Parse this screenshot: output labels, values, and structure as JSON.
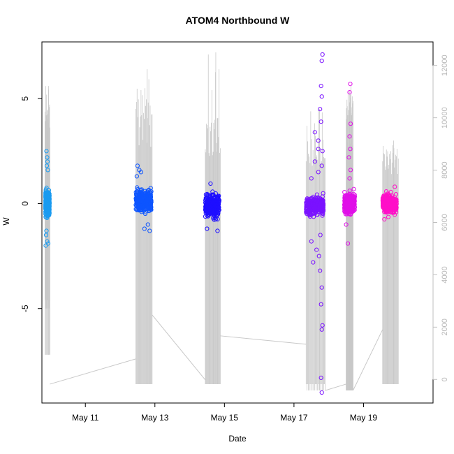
{
  "chart_data": {
    "type": "scatter",
    "title": "ATOM4 Northbound W",
    "xlabel": "Date",
    "ylabel": "W",
    "x_ticks": [
      "May 11",
      "May 13",
      "May 15",
      "May 17",
      "May 19"
    ],
    "x_tick_dates": [
      11,
      13,
      15,
      17,
      19
    ],
    "xlim_dates": [
      9.75,
      21.0
    ],
    "ylim": [
      -9.5,
      7.7
    ],
    "y_ticks": [
      -5,
      0,
      5
    ],
    "right_axis": {
      "ticks": [
        0,
        2000,
        4000,
        6000,
        8000,
        10000,
        12000
      ],
      "lim": [
        -900,
        12900
      ],
      "color": "#bfbfbf"
    },
    "gray_line_color": "#c8c8c8",
    "series": [
      {
        "color": "#1a9bf0",
        "date_range": [
          9.85,
          9.97
        ],
        "core": [
          -0.9,
          0.9
        ],
        "outliers": [
          [
            9.88,
            2.5
          ],
          [
            9.9,
            2.2
          ],
          [
            9.91,
            2.0
          ],
          [
            9.89,
            1.8
          ],
          [
            9.92,
            1.6
          ],
          [
            9.87,
            -1.5
          ],
          [
            9.9,
            -1.8
          ],
          [
            9.86,
            -2.0
          ],
          [
            9.88,
            -1.3
          ],
          [
            9.93,
            -1.9
          ]
        ],
        "gray": {
          "range": [
            9.84,
            9.98
          ],
          "tops": [
            4.3,
            5.3,
            3.8,
            5.6,
            4.0
          ],
          "bottoms": [
            -4.6,
            -7.2,
            -5.0,
            -2.0
          ]
        }
      },
      {
        "color": "#0d55ff",
        "date_range": [
          12.45,
          12.9
        ],
        "core": [
          -0.8,
          1.0
        ],
        "outliers": [
          [
            12.5,
            1.8
          ],
          [
            12.55,
            1.6
          ],
          [
            12.6,
            1.5
          ],
          [
            12.7,
            -1.2
          ],
          [
            12.8,
            -1.0
          ],
          [
            12.48,
            1.3
          ],
          [
            12.85,
            -1.3
          ]
        ],
        "gray": {
          "range": [
            12.45,
            12.92
          ],
          "tops": [
            4.6,
            5.0,
            6.4,
            4.8,
            5.2,
            3.5
          ],
          "bottoms": [
            -8.6
          ]
        }
      },
      {
        "color": "#1e0fff",
        "date_range": [
          14.45,
          14.85
        ],
        "core": [
          -1.0,
          0.8
        ],
        "outliers": [
          [
            14.5,
            -1.2
          ],
          [
            14.6,
            0.95
          ],
          [
            14.8,
            -1.3
          ]
        ],
        "gray": {
          "range": [
            14.45,
            14.88
          ],
          "tops": [
            2.8,
            3.0,
            4.5,
            4.4,
            4.2,
            7.2
          ],
          "bottoms": [
            -8.6
          ]
        }
      },
      {
        "color": "#7a12ff",
        "date_range": [
          17.35,
          17.85
        ],
        "core": [
          -0.8,
          0.6
        ],
        "outliers": [
          [
            17.82,
            7.1
          ],
          [
            17.8,
            6.8
          ],
          [
            17.78,
            5.6
          ],
          [
            17.8,
            5.1
          ],
          [
            17.75,
            4.5
          ],
          [
            17.78,
            3.9
          ],
          [
            17.6,
            3.4
          ],
          [
            17.7,
            3.0
          ],
          [
            17.82,
            2.5
          ],
          [
            17.5,
            -1.8
          ],
          [
            17.55,
            -2.8
          ],
          [
            17.75,
            -3.2
          ],
          [
            17.8,
            -4.0
          ],
          [
            17.78,
            -4.8
          ],
          [
            17.82,
            -5.8
          ],
          [
            17.8,
            -6.0
          ],
          [
            17.78,
            -8.3
          ],
          [
            17.8,
            -9.0
          ],
          [
            17.6,
            2.0
          ],
          [
            17.7,
            1.5
          ],
          [
            17.65,
            -2.2
          ],
          [
            17.72,
            -2.5
          ],
          [
            17.5,
            1.2
          ],
          [
            17.8,
            1.8
          ],
          [
            17.76,
            -1.5
          ],
          [
            17.7,
            2.6
          ]
        ],
        "gray": {
          "range": [
            17.35,
            17.9
          ],
          "tops": [
            2.2,
            4.5,
            3.4,
            2.4,
            2.8
          ],
          "bottoms": [
            -8.6,
            -8.9
          ]
        }
      },
      {
        "color": "#e010e8",
        "date_range": [
          18.45,
          18.75
        ],
        "core": [
          -0.8,
          0.8
        ],
        "outliers": [
          [
            18.62,
            5.7
          ],
          [
            18.6,
            5.3
          ],
          [
            18.63,
            3.8
          ],
          [
            18.6,
            3.2
          ],
          [
            18.62,
            2.6
          ],
          [
            18.58,
            2.2
          ],
          [
            18.63,
            1.6
          ],
          [
            18.55,
            -1.9
          ],
          [
            18.5,
            -1.0
          ],
          [
            18.6,
            1.2
          ]
        ],
        "gray": {
          "range": [
            18.5,
            18.7
          ],
          "tops": [
            5.2,
            5.6,
            3.0
          ],
          "bottoms": [
            -8.9
          ]
        }
      },
      {
        "color": "#ff10c8",
        "date_range": [
          19.55,
          19.95
        ],
        "core": [
          -0.7,
          0.7
        ],
        "outliers": [
          [
            19.6,
            -0.75
          ],
          [
            19.9,
            0.8
          ]
        ],
        "gray": {
          "range": [
            19.55,
            20.0
          ],
          "tops": [
            2.2,
            2.8,
            2.6,
            3.0,
            1.8
          ],
          "bottoms": [
            -8.6
          ]
        }
      }
    ],
    "connectors": [
      [
        [
          9.98,
          -8.6
        ],
        [
          12.45,
          -7.4
        ]
      ],
      [
        [
          12.92,
          -5.3
        ],
        [
          14.45,
          -8.4
        ]
      ],
      [
        [
          14.88,
          -6.3
        ],
        [
          17.35,
          -6.7
        ]
      ],
      [
        [
          17.9,
          -8.9
        ],
        [
          18.5,
          -8.6
        ]
      ],
      [
        [
          18.7,
          -8.9
        ],
        [
          19.55,
          -6.0
        ]
      ]
    ]
  }
}
